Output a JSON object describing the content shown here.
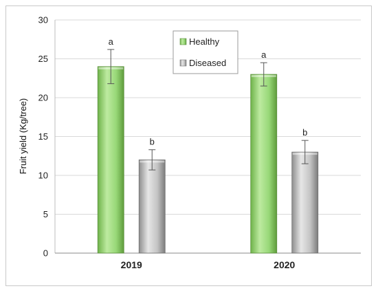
{
  "chart_data": {
    "type": "bar",
    "categories": [
      "2019",
      "2020"
    ],
    "ylabel": "Fruit yield (Kg/tree)",
    "ylim": [
      0,
      30
    ],
    "yticks": [
      0,
      5,
      10,
      15,
      20,
      25,
      30
    ],
    "grid": true,
    "legend_position": "top-center",
    "series": [
      {
        "name": "Healthy",
        "color": "#8ed26a",
        "values": [
          24.0,
          23.0
        ],
        "errors": [
          2.2,
          1.5
        ],
        "significance": [
          "a",
          "a"
        ]
      },
      {
        "name": "Diseased",
        "color": "#bdbdbd",
        "values": [
          12.0,
          13.0
        ],
        "errors": [
          1.3,
          1.5
        ],
        "significance": [
          "b",
          "b"
        ]
      }
    ]
  }
}
